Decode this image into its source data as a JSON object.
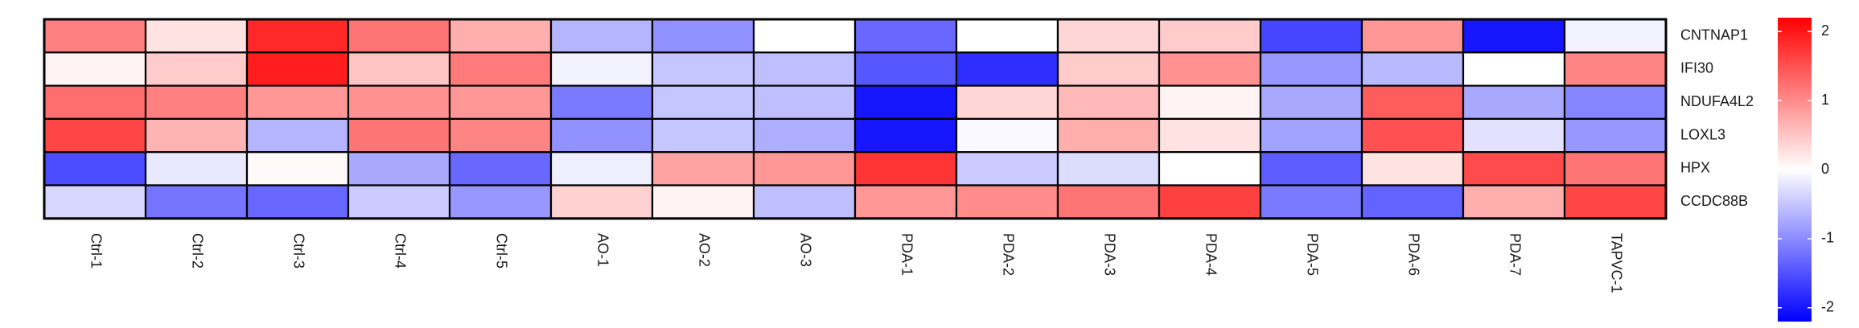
{
  "chart_data": {
    "type": "heatmap",
    "columns": [
      "Ctrl-1",
      "Ctrl-2",
      "Ctrl-3",
      "Ctrl-4",
      "Ctrl-5",
      "AO-1",
      "AO-2",
      "AO-3",
      "PDA-1",
      "PDA-2",
      "PDA-3",
      "PDA-4",
      "PDA-5",
      "PDA-6",
      "PDA-7",
      "TAPVC-1"
    ],
    "rows": [
      "CNTNAP1",
      "IFI30",
      "NDUFA4L2",
      "LOXL3",
      "HPX",
      "CCDC88B"
    ],
    "values": [
      [
        1.1,
        0.25,
        1.85,
        1.2,
        0.7,
        -0.65,
        -0.95,
        0.0,
        -1.3,
        0.0,
        0.35,
        0.45,
        -1.6,
        0.9,
        -2.0,
        -0.1
      ],
      [
        0.1,
        0.45,
        1.95,
        0.5,
        1.15,
        -0.1,
        -0.5,
        -0.55,
        -1.45,
        -1.8,
        0.45,
        0.95,
        -0.9,
        -0.6,
        0.0,
        1.05
      ],
      [
        1.25,
        1.1,
        0.9,
        0.95,
        0.9,
        -1.15,
        -0.5,
        -0.55,
        -2.0,
        0.35,
        0.6,
        0.1,
        -0.75,
        1.4,
        -0.75,
        -1.05
      ],
      [
        1.6,
        0.65,
        -0.65,
        1.2,
        1.05,
        -0.95,
        -0.5,
        -0.7,
        -2.0,
        -0.05,
        0.7,
        0.25,
        -0.8,
        1.5,
        -0.25,
        -0.9
      ],
      [
        -1.55,
        -0.2,
        0.05,
        -0.75,
        -1.3,
        -0.15,
        0.8,
        0.9,
        1.75,
        -0.45,
        -0.3,
        0.0,
        -1.4,
        0.25,
        1.55,
        1.2
      ],
      [
        -0.35,
        -1.2,
        -1.3,
        -0.45,
        -0.9,
        0.4,
        0.1,
        -0.55,
        0.9,
        1.0,
        1.2,
        1.65,
        -1.15,
        -1.35,
        0.7,
        1.6
      ]
    ],
    "colorbar": {
      "min": -2.2,
      "max": 2.2,
      "ticks": [
        2,
        1,
        0,
        -1,
        -2
      ],
      "tick_labels": [
        "2",
        "1",
        "0",
        "-1",
        "-2"
      ],
      "low_color": "#0000ff",
      "mid_color": "#ffffff",
      "high_color": "#ff0000"
    },
    "grid": true,
    "row_labels_position": "right",
    "column_labels_position": "bottom",
    "column_label_rotation": 90,
    "legend_position": "right"
  }
}
